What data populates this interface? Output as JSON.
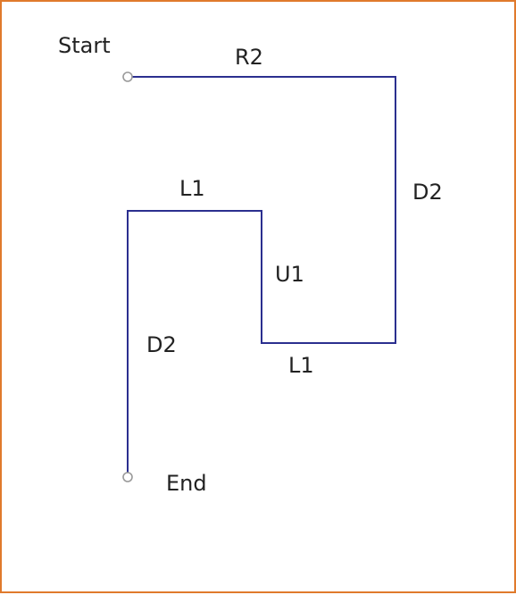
{
  "labels": {
    "start": "Start",
    "end": "End",
    "seg1": "R2",
    "seg2": "D2",
    "seg3": "L1",
    "seg4": "U1",
    "seg5": "L1",
    "seg6": "D2"
  },
  "colors": {
    "path": "#2b2f8f",
    "frame": "#e07a2c",
    "endpoint": "#9a9a9a"
  }
}
